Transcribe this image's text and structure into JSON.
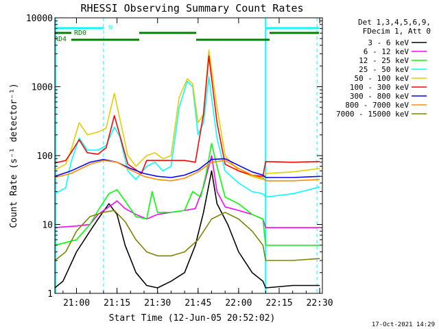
{
  "chart_data": {
    "type": "line",
    "title": "RHESSI Observing Summary Count Rates",
    "xlabel": "Start Time (12-Jun-05 20:52:02)",
    "ylabel": "Count Rate (s⁻¹ detector⁻¹)",
    "y_scale": "log",
    "ylim": [
      1,
      10000
    ],
    "xlim": [
      "20:52:02",
      "22:31:00"
    ],
    "x_ticks": [
      "21:00",
      "21:15",
      "21:30",
      "21:45",
      "22:00",
      "22:15",
      "22:30"
    ],
    "y_ticks": [
      "1",
      "10",
      "100",
      "1000",
      "10000"
    ],
    "legend_header": [
      "Det 1,3,4,5,6,9,",
      "FDecim 1, Att 0"
    ],
    "footer_date": "17-Oct-2021 14:29",
    "annotations": {
      "n_label": "N",
      "rd0_label": "RD0",
      "rd4_label": "RD4"
    },
    "series": [
      {
        "name": "3 - 6 keV",
        "color": "#000000",
        "points": [
          [
            "20:52",
            1.2
          ],
          [
            "20:55",
            1.5
          ],
          [
            "21:00",
            4
          ],
          [
            "21:05",
            8
          ],
          [
            "21:08",
            12
          ],
          [
            "21:12",
            20
          ],
          [
            "21:15",
            14
          ],
          [
            "21:18",
            5
          ],
          [
            "21:22",
            2
          ],
          [
            "21:26",
            1.3
          ],
          [
            "21:30",
            1.2
          ],
          [
            "21:35",
            1.5
          ],
          [
            "21:40",
            2
          ],
          [
            "21:44",
            5
          ],
          [
            "21:47",
            15
          ],
          [
            "21:50",
            60
          ],
          [
            "21:52",
            20
          ],
          [
            "21:56",
            10
          ],
          [
            "22:00",
            4
          ],
          [
            "22:05",
            2
          ],
          [
            "22:09",
            1.5
          ],
          [
            "22:10",
            1.2
          ],
          [
            "22:20",
            1.3
          ],
          [
            "22:30",
            1.3
          ]
        ]
      },
      {
        "name": "6 - 12 keV",
        "color": "#ff00ff",
        "points": [
          [
            "20:52",
            9
          ],
          [
            "21:00",
            9.5
          ],
          [
            "21:05",
            10
          ],
          [
            "21:08",
            14
          ],
          [
            "21:12",
            18
          ],
          [
            "21:15",
            22
          ],
          [
            "21:18",
            17
          ],
          [
            "21:22",
            14
          ],
          [
            "21:26",
            12
          ],
          [
            "21:30",
            14
          ],
          [
            "21:35",
            15
          ],
          [
            "21:40",
            16
          ],
          [
            "21:44",
            17
          ],
          [
            "21:47",
            35
          ],
          [
            "21:50",
            100
          ],
          [
            "21:52",
            30
          ],
          [
            "21:55",
            18
          ],
          [
            "22:00",
            16
          ],
          [
            "22:05",
            14
          ],
          [
            "22:09",
            12
          ],
          [
            "22:10",
            9
          ],
          [
            "22:20",
            9
          ],
          [
            "22:30",
            9
          ]
        ]
      },
      {
        "name": "12 - 25 keV",
        "color": "#00ff00",
        "points": [
          [
            "20:52",
            5
          ],
          [
            "21:00",
            6
          ],
          [
            "21:05",
            10
          ],
          [
            "21:08",
            16
          ],
          [
            "21:12",
            28
          ],
          [
            "21:15",
            32
          ],
          [
            "21:18",
            22
          ],
          [
            "21:22",
            13
          ],
          [
            "21:26",
            12
          ],
          [
            "21:28",
            30
          ],
          [
            "21:30",
            15
          ],
          [
            "21:35",
            15
          ],
          [
            "21:40",
            16
          ],
          [
            "21:43",
            30
          ],
          [
            "21:46",
            25
          ],
          [
            "21:48",
            55
          ],
          [
            "21:50",
            150
          ],
          [
            "21:52",
            70
          ],
          [
            "21:55",
            25
          ],
          [
            "22:00",
            20
          ],
          [
            "22:05",
            14
          ],
          [
            "22:09",
            12
          ],
          [
            "22:10",
            5
          ],
          [
            "22:20",
            5
          ],
          [
            "22:30",
            5
          ]
        ]
      },
      {
        "name": "25 - 50 keV",
        "color": "#00ffff",
        "points": [
          [
            "20:52",
            28
          ],
          [
            "20:56",
            34
          ],
          [
            "20:58",
            80
          ],
          [
            "21:01",
            180
          ],
          [
            "21:04",
            120
          ],
          [
            "21:08",
            120
          ],
          [
            "21:11",
            140
          ],
          [
            "21:14",
            260
          ],
          [
            "21:16",
            190
          ],
          [
            "21:19",
            60
          ],
          [
            "21:22",
            45
          ],
          [
            "21:26",
            70
          ],
          [
            "21:29",
            80
          ],
          [
            "21:32",
            60
          ],
          [
            "21:35",
            70
          ],
          [
            "21:38",
            500
          ],
          [
            "21:41",
            1200
          ],
          [
            "21:43",
            1000
          ],
          [
            "21:45",
            200
          ],
          [
            "21:47",
            300
          ],
          [
            "21:49",
            1400
          ],
          [
            "21:52",
            180
          ],
          [
            "21:55",
            60
          ],
          [
            "22:00",
            40
          ],
          [
            "22:05",
            30
          ],
          [
            "22:09",
            28
          ],
          [
            "22:10",
            25
          ],
          [
            "22:20",
            28
          ],
          [
            "22:30",
            35
          ]
        ]
      },
      {
        "name": "50 - 100 keV",
        "color": "#e6cc00",
        "points": [
          [
            "20:52",
            62
          ],
          [
            "20:56",
            75
          ],
          [
            "20:58",
            120
          ],
          [
            "21:01",
            300
          ],
          [
            "21:04",
            200
          ],
          [
            "21:08",
            220
          ],
          [
            "21:11",
            250
          ],
          [
            "21:14",
            800
          ],
          [
            "21:16",
            350
          ],
          [
            "21:19",
            100
          ],
          [
            "21:22",
            70
          ],
          [
            "21:26",
            100
          ],
          [
            "21:29",
            110
          ],
          [
            "21:32",
            90
          ],
          [
            "21:35",
            100
          ],
          [
            "21:38",
            700
          ],
          [
            "21:41",
            1300
          ],
          [
            "21:43",
            1100
          ],
          [
            "21:45",
            300
          ],
          [
            "21:47",
            400
          ],
          [
            "21:49",
            3400
          ],
          [
            "21:52",
            500
          ],
          [
            "21:55",
            100
          ],
          [
            "22:00",
            60
          ],
          [
            "22:05",
            50
          ],
          [
            "22:09",
            45
          ],
          [
            "22:10",
            55
          ],
          [
            "22:20",
            58
          ],
          [
            "22:30",
            65
          ]
        ]
      },
      {
        "name": "100 - 300 keV",
        "color": "#ff0000",
        "points": [
          [
            "20:52",
            78
          ],
          [
            "20:56",
            85
          ],
          [
            "20:58",
            110
          ],
          [
            "21:01",
            170
          ],
          [
            "21:04",
            110
          ],
          [
            "21:08",
            105
          ],
          [
            "21:11",
            130
          ],
          [
            "21:14",
            380
          ],
          [
            "21:16",
            200
          ],
          [
            "21:19",
            75
          ],
          [
            "21:24",
            55
          ],
          [
            "21:26",
            85
          ],
          [
            "21:30",
            85
          ],
          [
            "21:35",
            85
          ],
          [
            "21:40",
            85
          ],
          [
            "21:44",
            80
          ],
          [
            "21:47",
            400
          ],
          [
            "21:49",
            2800
          ],
          [
            "21:52",
            300
          ],
          [
            "21:55",
            75
          ],
          [
            "22:00",
            60
          ],
          [
            "22:05",
            52
          ],
          [
            "22:09",
            50
          ],
          [
            "22:10",
            82
          ],
          [
            "22:20",
            80
          ],
          [
            "22:30",
            82
          ]
        ]
      },
      {
        "name": "300 - 800 keV",
        "color": "#0000ff",
        "points": [
          [
            "20:52",
            50
          ],
          [
            "20:58",
            60
          ],
          [
            "21:05",
            80
          ],
          [
            "21:10",
            88
          ],
          [
            "21:15",
            80
          ],
          [
            "21:20",
            65
          ],
          [
            "21:25",
            55
          ],
          [
            "21:30",
            50
          ],
          [
            "21:35",
            48
          ],
          [
            "21:40",
            52
          ],
          [
            "21:45",
            62
          ],
          [
            "21:50",
            88
          ],
          [
            "21:55",
            90
          ],
          [
            "22:00",
            72
          ],
          [
            "22:05",
            58
          ],
          [
            "22:09",
            52
          ],
          [
            "22:10",
            48
          ],
          [
            "22:20",
            48
          ],
          [
            "22:30",
            50
          ]
        ]
      },
      {
        "name": "800 - 7000 keV",
        "color": "#ff8c00",
        "points": [
          [
            "20:52",
            48
          ],
          [
            "20:58",
            55
          ],
          [
            "21:05",
            75
          ],
          [
            "21:10",
            85
          ],
          [
            "21:15",
            80
          ],
          [
            "21:20",
            62
          ],
          [
            "21:25",
            50
          ],
          [
            "21:30",
            45
          ],
          [
            "21:35",
            43
          ],
          [
            "21:40",
            47
          ],
          [
            "21:45",
            58
          ],
          [
            "21:50",
            80
          ],
          [
            "21:55",
            85
          ],
          [
            "22:00",
            65
          ],
          [
            "22:05",
            52
          ],
          [
            "22:09",
            47
          ],
          [
            "22:10",
            43
          ],
          [
            "22:20",
            43
          ],
          [
            "22:30",
            45
          ]
        ]
      },
      {
        "name": "7000 - 15000 keV",
        "color": "#808000",
        "points": [
          [
            "20:52",
            3
          ],
          [
            "20:56",
            4
          ],
          [
            "21:00",
            8
          ],
          [
            "21:05",
            13
          ],
          [
            "21:10",
            15
          ],
          [
            "21:14",
            16
          ],
          [
            "21:18",
            11
          ],
          [
            "21:22",
            6
          ],
          [
            "21:26",
            4
          ],
          [
            "21:30",
            3.5
          ],
          [
            "21:35",
            3.5
          ],
          [
            "21:40",
            4
          ],
          [
            "21:45",
            6
          ],
          [
            "21:50",
            12
          ],
          [
            "21:55",
            15
          ],
          [
            "22:00",
            12
          ],
          [
            "22:05",
            8
          ],
          [
            "22:09",
            5
          ],
          [
            "22:10",
            3
          ],
          [
            "22:20",
            3
          ],
          [
            "22:30",
            3.2
          ]
        ]
      }
    ]
  }
}
